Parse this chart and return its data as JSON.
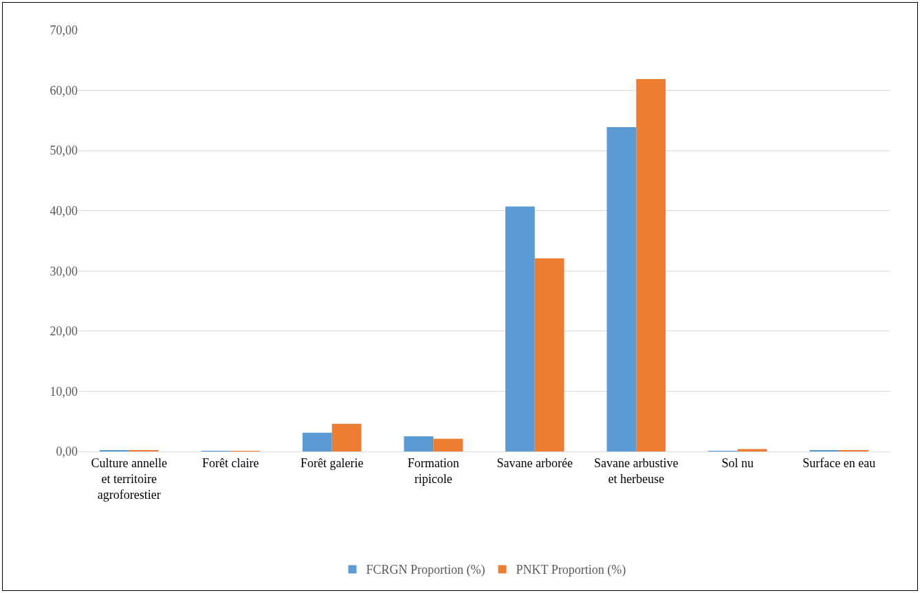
{
  "chart_data": {
    "type": "bar",
    "categories": [
      "Culture annelle et territoire agroforestier",
      "Forêt claire",
      "Forêt galerie",
      "Formation ripicole",
      "Savane arborée",
      "Savane arbustive et herbeuse",
      "Sol nu",
      "Surface en eau"
    ],
    "series": [
      {
        "name": "FCRGN Proportion (%)",
        "color": "#5b9bd5",
        "values": [
          0.2,
          0.1,
          3.1,
          2.5,
          40.7,
          53.9,
          0.1,
          0.2
        ]
      },
      {
        "name": "PNKT Proportion (%)",
        "color": "#ed7d31",
        "values": [
          0.2,
          0.1,
          4.6,
          2.1,
          32.1,
          61.9,
          0.4,
          0.2
        ]
      }
    ],
    "ylim": [
      0,
      70
    ],
    "yticks": [
      {
        "value": 0,
        "label": "0,00"
      },
      {
        "value": 10,
        "label": "10,00"
      },
      {
        "value": 20,
        "label": "20,00"
      },
      {
        "value": 30,
        "label": "30,00"
      },
      {
        "value": 40,
        "label": "40,00"
      },
      {
        "value": 50,
        "label": "50,00"
      },
      {
        "value": 60,
        "label": "60,00"
      },
      {
        "value": 70,
        "label": "70,00"
      }
    ],
    "grid": "y",
    "legend": "bottom"
  }
}
